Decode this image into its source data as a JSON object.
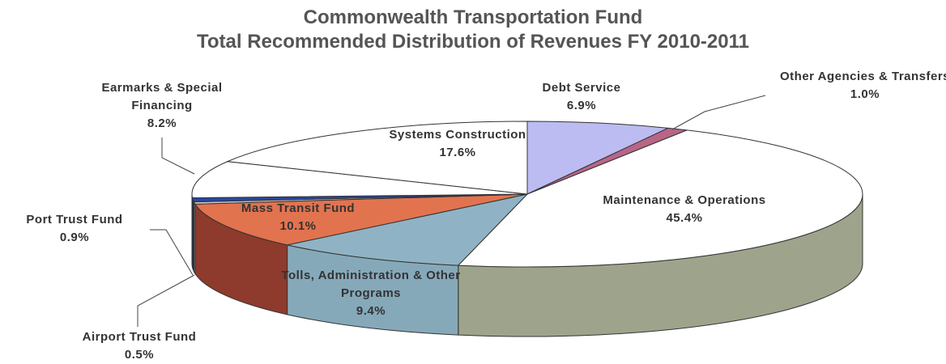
{
  "chart_data": {
    "type": "pie3d",
    "title": "Commonwealth Transportation Fund",
    "subtitle": "Total Recommended Distribution of Revenues FY 2010-2011",
    "categories": [
      "Debt Service",
      "Other Agencies & Transfers",
      "Maintenance & Operations",
      "Tolls, Administration & Other Programs",
      "Mass Transit Fund",
      "Airport Trust Fund",
      "Port Trust Fund",
      "Earmarks & Special Financing",
      "Systems Construction"
    ],
    "values": [
      6.9,
      1.0,
      45.4,
      9.4,
      10.1,
      0.5,
      0.9,
      8.2,
      17.6
    ],
    "value_labels": [
      "6.9%",
      "1.0%",
      "45.4%",
      "9.4%",
      "10.1%",
      "0.5%",
      "0.9%",
      "8.2%",
      "17.6%"
    ],
    "colors": [
      "#bcbcf2",
      "#b86688",
      "#ffffff",
      "#8fb3c4",
      "#e2734f",
      "#c8c8c8",
      "#2a46a0",
      "#ffffff",
      "#ffffff"
    ],
    "side_colors": [
      "#8a8ac0",
      "#804060",
      "#9ea48c",
      "#86a9ba",
      "#8e3a2c",
      "#8a8a8a",
      "#1a2c70",
      "#d8d8d8",
      "#d8d8d8"
    ]
  }
}
